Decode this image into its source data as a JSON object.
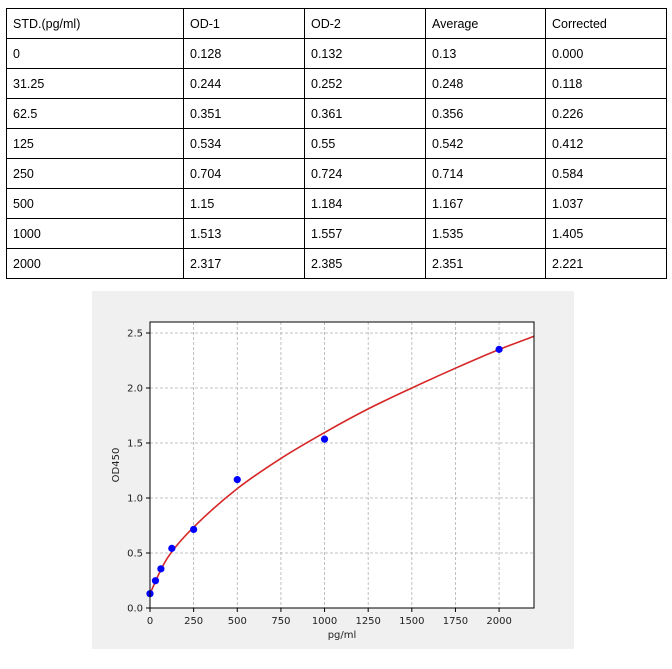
{
  "table": {
    "headers": [
      "STD.(pg/ml)",
      "OD-1",
      "OD-2",
      "Average",
      "Corrected"
    ],
    "rows": [
      [
        "0",
        "0.128",
        "0.132",
        "0.13",
        "0.000"
      ],
      [
        "31.25",
        "0.244",
        "0.252",
        "0.248",
        "0.118"
      ],
      [
        "62.5",
        "0.351",
        "0.361",
        "0.356",
        "0.226"
      ],
      [
        "125",
        "0.534",
        "0.55",
        "0.542",
        "0.412"
      ],
      [
        "250",
        "0.704",
        "0.724",
        "0.714",
        "0.584"
      ],
      [
        "500",
        "1.15",
        "1.184",
        "1.167",
        "1.037"
      ],
      [
        "1000",
        "1.513",
        "1.557",
        "1.535",
        "1.405"
      ],
      [
        "2000",
        "2.317",
        "2.385",
        "2.351",
        "2.221"
      ]
    ]
  },
  "chart_data": {
    "type": "scatter",
    "title": "",
    "xlabel": "pg/ml",
    "ylabel": "OD450",
    "xlim": [
      0,
      2200
    ],
    "ylim": [
      0,
      2.6
    ],
    "xticks": [
      0,
      250,
      500,
      750,
      1000,
      1250,
      1500,
      1750,
      2000
    ],
    "yticks": [
      0.0,
      0.5,
      1.0,
      1.5,
      2.0,
      2.5
    ],
    "xtick_labels": [
      "0",
      "250",
      "500",
      "750",
      "1000",
      "1250",
      "1500",
      "1750",
      "2000"
    ],
    "ytick_labels": [
      "0.0",
      "0.5",
      "1.0",
      "1.5",
      "2.0",
      "2.5"
    ],
    "grid": true,
    "points": {
      "x": [
        0,
        31.25,
        62.5,
        125,
        250,
        500,
        1000,
        2000
      ],
      "y": [
        0.13,
        0.248,
        0.356,
        0.542,
        0.714,
        1.167,
        1.535,
        2.351
      ],
      "color": "#0000ff"
    },
    "fit_curve": {
      "x": [
        0,
        100,
        250,
        500,
        750,
        1000,
        1250,
        1500,
        1750,
        2000,
        2200
      ],
      "y": [
        0.13,
        0.455,
        0.735,
        1.085,
        1.36,
        1.595,
        1.81,
        2.0,
        2.18,
        2.35,
        2.47
      ],
      "color": "#d62728"
    }
  }
}
